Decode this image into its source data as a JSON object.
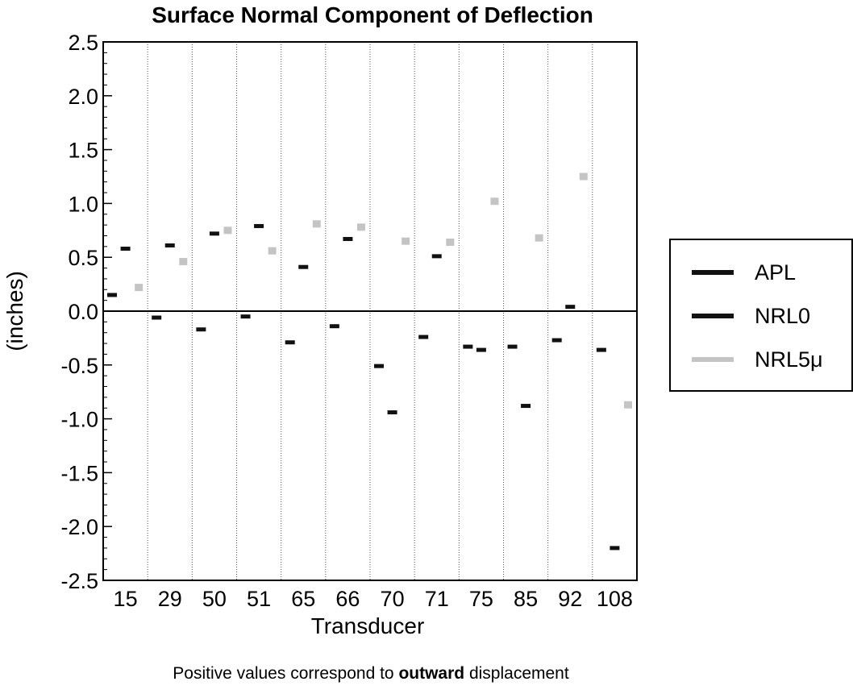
{
  "chart_data": {
    "type": "scatter",
    "title": "Surface Normal Component of Deflection",
    "xlabel": "Transducer",
    "ylabel": "(inches)",
    "categories": [
      "15",
      "29",
      "50",
      "51",
      "65",
      "66",
      "70",
      "71",
      "75",
      "85",
      "92",
      "108"
    ],
    "ylim": [
      -2.5,
      2.5
    ],
    "yticks": [
      "2.5",
      "2.0",
      "1.5",
      "1.0",
      "0.5",
      "0.0",
      "-0.5",
      "-1.0",
      "-1.5",
      "-2.0",
      "-2.5"
    ],
    "ytick_values": [
      2.5,
      2.0,
      1.5,
      1.0,
      0.5,
      0.0,
      -0.5,
      -1.0,
      -1.5,
      -2.0,
      -2.5
    ],
    "grid": "vertical dotted separators between transducers",
    "legend_placement": "right",
    "series": [
      {
        "name": "APL",
        "color": "#111111",
        "values": [
          0.15,
          -0.06,
          -0.17,
          -0.05,
          -0.29,
          -0.14,
          -0.51,
          -0.24,
          -0.33,
          -0.33,
          -0.27,
          -0.36
        ]
      },
      {
        "name": "NRL0",
        "color": "#111111",
        "values": [
          0.58,
          0.61,
          0.72,
          0.79,
          0.41,
          0.67,
          -0.94,
          0.51,
          -0.36,
          -0.88,
          0.04,
          -2.2
        ]
      },
      {
        "name": "NRL5μ",
        "color": "#c4c4c4",
        "values": [
          0.22,
          0.46,
          0.75,
          0.56,
          0.81,
          0.78,
          0.65,
          0.64,
          1.02,
          0.68,
          1.25,
          -0.87
        ]
      }
    ]
  },
  "footnote": {
    "before": "Positive values correspond to ",
    "bold": "outward",
    "after": " displacement"
  }
}
